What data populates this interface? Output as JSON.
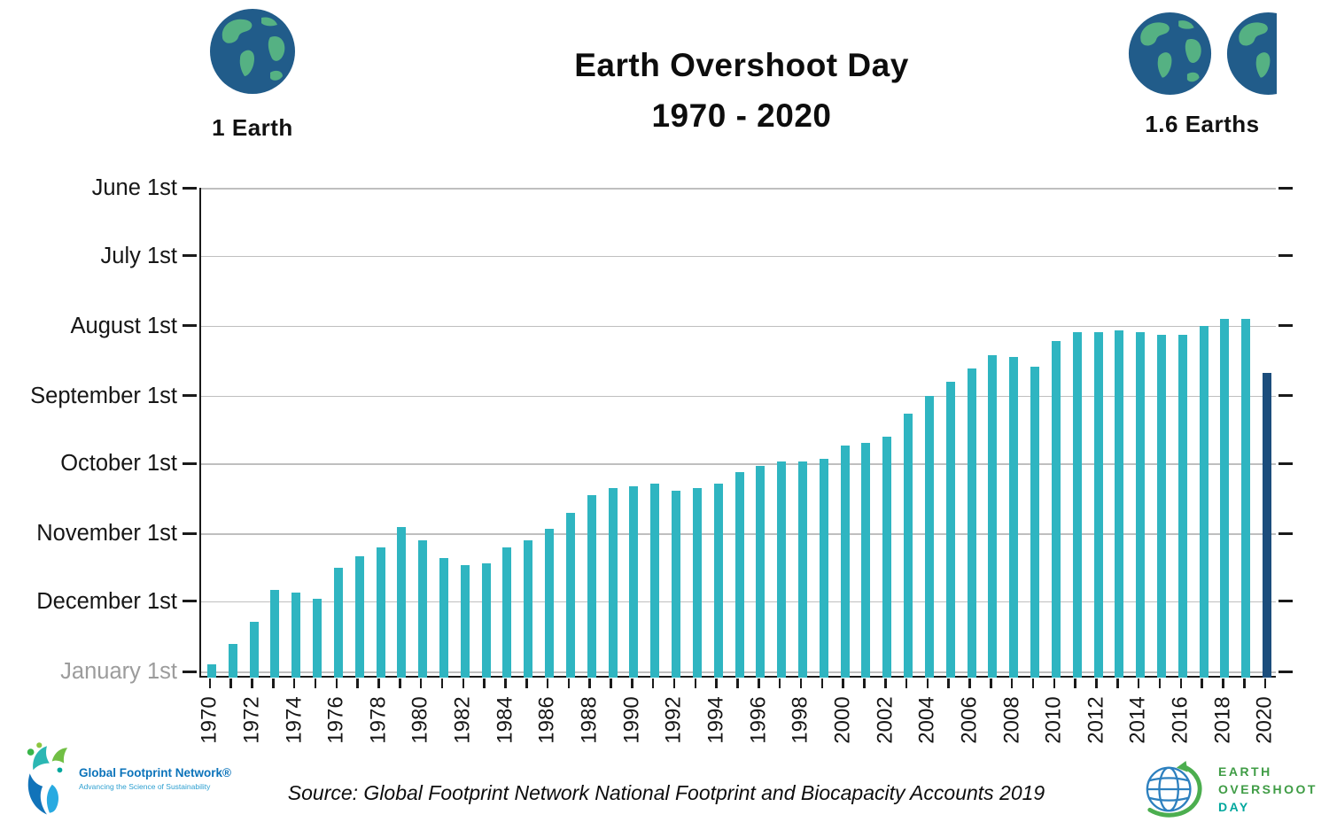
{
  "header": {
    "title_line1": "Earth Overshoot Day",
    "title_line2": "1970 - 2020",
    "left_globe": {
      "label": "1 Earth"
    },
    "right_globe": {
      "label": "1.6 Earths"
    }
  },
  "chart_data": {
    "type": "bar",
    "title": "Earth Overshoot Day 1970 - 2020",
    "description": "Date of Earth Overshoot Day per year. Bars rise from January 1st (bottom baseline) toward June 1st (top); a taller bar means an earlier overshoot date.",
    "bar_color": "#2fb5c1",
    "highlight_year": 2020,
    "highlight_color": "#1c4d7c",
    "x_label_interval": 2,
    "y_axis": {
      "top_day": 152,
      "bottom_day": 366,
      "ticks": [
        {
          "label": "June 1st",
          "day": 152
        },
        {
          "label": "July 1st",
          "day": 182
        },
        {
          "label": "August 1st",
          "day": 213
        },
        {
          "label": "September 1st",
          "day": 244
        },
        {
          "label": "October 1st",
          "day": 274
        },
        {
          "label": "November 1st",
          "day": 305
        },
        {
          "label": "December 1st",
          "day": 335
        },
        {
          "label": "January 1st",
          "day": 366,
          "muted": true
        }
      ]
    },
    "series": [
      {
        "year": 1970,
        "date": "Dec 29",
        "day": 363
      },
      {
        "year": 1971,
        "date": "Dec 20",
        "day": 354
      },
      {
        "year": 1972,
        "date": "Dec 10",
        "day": 344
      },
      {
        "year": 1973,
        "date": "Nov 26",
        "day": 330
      },
      {
        "year": 1974,
        "date": "Nov 27",
        "day": 331
      },
      {
        "year": 1975,
        "date": "Nov 30",
        "day": 334
      },
      {
        "year": 1976,
        "date": "Nov 16",
        "day": 320
      },
      {
        "year": 1977,
        "date": "Nov 11",
        "day": 315
      },
      {
        "year": 1978,
        "date": "Nov 7",
        "day": 311
      },
      {
        "year": 1979,
        "date": "Oct 29",
        "day": 302
      },
      {
        "year": 1980,
        "date": "Nov 4",
        "day": 308
      },
      {
        "year": 1981,
        "date": "Nov 12",
        "day": 316
      },
      {
        "year": 1982,
        "date": "Nov 15",
        "day": 319
      },
      {
        "year": 1983,
        "date": "Nov 14",
        "day": 318
      },
      {
        "year": 1984,
        "date": "Nov 7",
        "day": 311
      },
      {
        "year": 1985,
        "date": "Nov 4",
        "day": 308
      },
      {
        "year": 1986,
        "date": "Oct 30",
        "day": 303
      },
      {
        "year": 1987,
        "date": "Oct 23",
        "day": 296
      },
      {
        "year": 1988,
        "date": "Oct 15",
        "day": 288
      },
      {
        "year": 1989,
        "date": "Oct 12",
        "day": 285
      },
      {
        "year": 1990,
        "date": "Oct 11",
        "day": 284
      },
      {
        "year": 1991,
        "date": "Oct 10",
        "day": 283
      },
      {
        "year": 1992,
        "date": "Oct 13",
        "day": 286
      },
      {
        "year": 1993,
        "date": "Oct 12",
        "day": 285
      },
      {
        "year": 1994,
        "date": "Oct 10",
        "day": 283
      },
      {
        "year": 1995,
        "date": "Oct 5",
        "day": 278
      },
      {
        "year": 1996,
        "date": "Oct 2",
        "day": 275
      },
      {
        "year": 1997,
        "date": "Sep 30",
        "day": 273
      },
      {
        "year": 1998,
        "date": "Sep 30",
        "day": 273
      },
      {
        "year": 1999,
        "date": "Sep 29",
        "day": 272
      },
      {
        "year": 2000,
        "date": "Sep 23",
        "day": 266
      },
      {
        "year": 2001,
        "date": "Sep 22",
        "day": 265
      },
      {
        "year": 2002,
        "date": "Sep 19",
        "day": 262
      },
      {
        "year": 2003,
        "date": "Sep 9",
        "day": 252
      },
      {
        "year": 2004,
        "date": "Sep 1",
        "day": 244
      },
      {
        "year": 2005,
        "date": "Aug 26",
        "day": 238
      },
      {
        "year": 2006,
        "date": "Aug 20",
        "day": 232
      },
      {
        "year": 2007,
        "date": "Aug 14",
        "day": 226
      },
      {
        "year": 2008,
        "date": "Aug 15",
        "day": 227
      },
      {
        "year": 2009,
        "date": "Aug 19",
        "day": 231
      },
      {
        "year": 2010,
        "date": "Aug 8",
        "day": 220
      },
      {
        "year": 2011,
        "date": "Aug 4",
        "day": 216
      },
      {
        "year": 2012,
        "date": "Aug 4",
        "day": 216
      },
      {
        "year": 2013,
        "date": "Aug 3",
        "day": 215
      },
      {
        "year": 2014,
        "date": "Aug 4",
        "day": 216
      },
      {
        "year": 2015,
        "date": "Aug 5",
        "day": 217
      },
      {
        "year": 2016,
        "date": "Aug 5",
        "day": 217
      },
      {
        "year": 2017,
        "date": "Aug 1",
        "day": 213
      },
      {
        "year": 2018,
        "date": "Jul 29",
        "day": 210
      },
      {
        "year": 2019,
        "date": "Jul 29",
        "day": 210
      },
      {
        "year": 2020,
        "date": "Aug 22",
        "day": 234
      }
    ]
  },
  "footer": {
    "source": "Source: Global Footprint Network National Footprint and Biocapacity Accounts 2019",
    "gfn_logo": {
      "name": "Global Footprint Network®",
      "tagline": "Advancing the Science of Sustainability"
    },
    "eod_logo": {
      "line1": "EARTH",
      "line2": "OVERSHOOT",
      "line3": "DAY"
    }
  }
}
